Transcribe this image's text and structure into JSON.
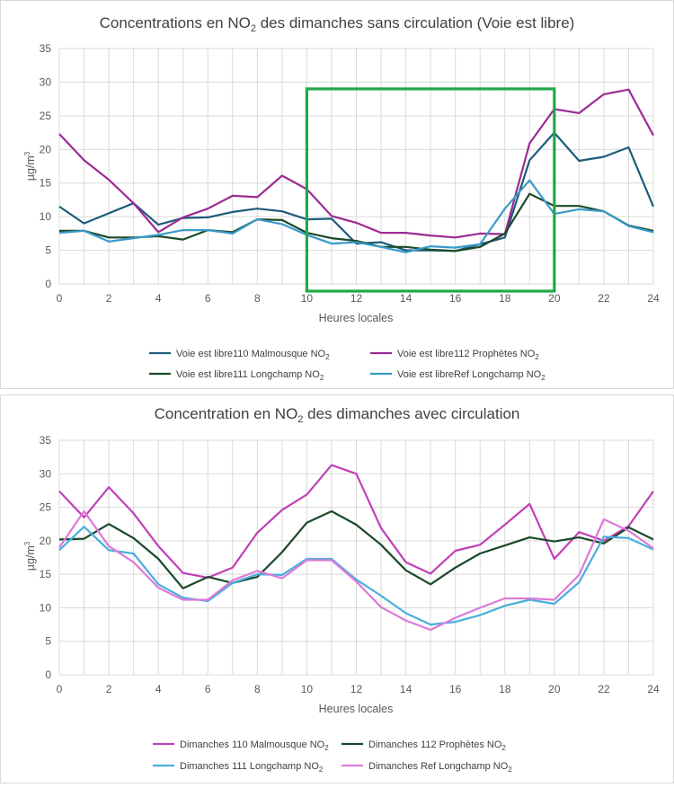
{
  "chart_data": [
    {
      "type": "line",
      "title": "Concentrations en NO2 des dimanches sans circulation (Voie est libre)",
      "xlabel": "Heures locales",
      "ylabel": "µg/m3",
      "xlim": [
        0,
        24
      ],
      "ylim": [
        0,
        35
      ],
      "x_ticks": [
        "0",
        "2",
        "4",
        "6",
        "8",
        "10",
        "12",
        "14",
        "16",
        "18",
        "20",
        "22",
        "24"
      ],
      "y_ticks": [
        "0",
        "5",
        "10",
        "15",
        "20",
        "25",
        "30",
        "35"
      ],
      "grid": true,
      "legend_position": "bottom",
      "highlight_box": {
        "x_from": 10,
        "x_to": 20,
        "y_from": 0,
        "y_to": 29,
        "color": "#22a84a"
      },
      "x": [
        0,
        1,
        2,
        3,
        4,
        5,
        6,
        7,
        8,
        9,
        10,
        11,
        12,
        13,
        14,
        15,
        16,
        17,
        18,
        19,
        20,
        21,
        22,
        23,
        24
      ],
      "series": [
        {
          "name": "Voie est libre110 Malmousque NO2",
          "color": "#1d5c7a",
          "values": [
            11.5,
            9.0,
            10.5,
            12.0,
            8.8,
            9.8,
            9.9,
            10.7,
            11.2,
            10.8,
            9.6,
            9.7,
            6.0,
            6.2,
            5.0,
            5.0,
            4.9,
            5.9,
            6.9,
            18.4,
            22.5,
            18.3,
            18.9,
            20.3,
            11.5
          ]
        },
        {
          "name": "Voie est libre112 Prophètes NO2",
          "color": "#9c2a93",
          "values": [
            22.3,
            18.4,
            15.5,
            12.0,
            7.7,
            9.9,
            11.2,
            13.1,
            12.9,
            16.1,
            14.1,
            10.1,
            9.1,
            7.6,
            7.6,
            7.2,
            6.9,
            7.5,
            7.4,
            20.9,
            26.0,
            25.4,
            28.2,
            28.9,
            22.1
          ]
        },
        {
          "name": "Voie est libre111 Longchamp NO2",
          "color": "#1a4a28",
          "values": [
            7.9,
            7.9,
            6.9,
            6.9,
            7.1,
            6.6,
            8.0,
            7.7,
            9.6,
            9.5,
            7.6,
            6.8,
            6.4,
            5.5,
            5.5,
            5.1,
            4.9,
            5.5,
            7.5,
            13.4,
            11.6,
            11.6,
            10.8,
            8.7,
            7.9
          ]
        },
        {
          "name": "Voie est libreRef Longchamp NO2",
          "color": "#3a9ac9",
          "values": [
            7.6,
            7.9,
            6.3,
            6.8,
            7.3,
            8.0,
            8.0,
            7.5,
            9.6,
            8.9,
            7.3,
            6.0,
            6.2,
            5.5,
            4.7,
            5.6,
            5.4,
            5.9,
            11.2,
            15.4,
            10.4,
            11.1,
            10.8,
            8.6,
            7.7
          ]
        }
      ]
    },
    {
      "type": "line",
      "title": "Concentration en NO2 des dimanches avec circulation",
      "xlabel": "Heures locales",
      "ylabel": "µg/m3",
      "xlim": [
        0,
        24
      ],
      "ylim": [
        0,
        35
      ],
      "x_ticks": [
        "0",
        "2",
        "4",
        "6",
        "8",
        "10",
        "12",
        "14",
        "16",
        "18",
        "20",
        "22",
        "24"
      ],
      "y_ticks": [
        "0",
        "5",
        "10",
        "15",
        "20",
        "25",
        "30",
        "35"
      ],
      "grid": true,
      "legend_position": "bottom",
      "x": [
        0,
        1,
        2,
        3,
        4,
        5,
        6,
        7,
        8,
        9,
        10,
        11,
        12,
        13,
        14,
        15,
        16,
        17,
        18,
        19,
        20,
        21,
        22,
        23,
        24
      ],
      "series": [
        {
          "name": "Dimanches 110 Malmousque NO2",
          "color": "#c040b8",
          "values": [
            27.4,
            23.5,
            28.0,
            24.1,
            19.2,
            15.2,
            14.5,
            16.0,
            21.2,
            24.6,
            26.9,
            31.3,
            30.0,
            21.9,
            16.8,
            15.1,
            18.5,
            19.4,
            22.4,
            25.5,
            17.3,
            21.3,
            20.0,
            22.2,
            27.4
          ]
        },
        {
          "name": "Dimanches 112 Prophètes NO2",
          "color": "#1a4a28",
          "values": [
            20.2,
            20.3,
            22.5,
            20.4,
            17.3,
            12.9,
            14.6,
            13.7,
            14.6,
            18.3,
            22.7,
            24.4,
            22.4,
            19.4,
            15.6,
            13.5,
            16.0,
            18.1,
            19.3,
            20.5,
            19.9,
            20.5,
            19.6,
            22.0,
            20.2
          ]
        },
        {
          "name": "Dimanches 111 Longchamp NO2",
          "color": "#4aaedc",
          "values": [
            18.6,
            22.1,
            18.6,
            18.1,
            13.5,
            11.5,
            11.0,
            13.7,
            15.0,
            14.9,
            17.3,
            17.3,
            14.2,
            11.8,
            9.2,
            7.5,
            7.9,
            8.9,
            10.3,
            11.2,
            10.6,
            13.8,
            20.6,
            20.4,
            18.7
          ]
        },
        {
          "name": "Dimanches Ref Longchamp NO2",
          "color": "#dd7ad8",
          "values": [
            19.0,
            24.4,
            19.2,
            16.8,
            13.0,
            11.2,
            11.2,
            14.1,
            15.5,
            14.4,
            17.1,
            17.1,
            13.9,
            10.1,
            8.1,
            6.7,
            8.5,
            10.0,
            11.4,
            11.4,
            11.2,
            14.9,
            23.2,
            21.5,
            18.9
          ]
        }
      ]
    }
  ],
  "legend_titles": {
    "top": [
      {
        "base": "Voie est libre110 Malmousque NO",
        "sub": "2"
      },
      {
        "base": "Voie est libre112 Prophètes NO",
        "sub": "2"
      },
      {
        "base": "Voie est libre111 Longchamp NO",
        "sub": "2"
      },
      {
        "base": "Voie est libreRef Longchamp NO",
        "sub": "2"
      }
    ],
    "bottom": [
      {
        "base": "Dimanches 110 Malmousque NO",
        "sub": "2"
      },
      {
        "base": "Dimanches 112 Prophètes NO",
        "sub": "2"
      },
      {
        "base": "Dimanches 111 Longchamp NO",
        "sub": "2"
      },
      {
        "base": "Dimanches Ref Longchamp NO",
        "sub": "2"
      }
    ]
  },
  "titles": {
    "top": {
      "pre": "Concentrations en NO",
      "sub": "2",
      "post": " des dimanches sans circulation (Voie est libre)"
    },
    "bottom": {
      "pre": "Concentration en NO",
      "sub": "2",
      "post": " des dimanches avec circulation"
    }
  },
  "axis_titles": {
    "x": "Heures locales",
    "y_base": "µg/m",
    "y_sup": "3"
  }
}
